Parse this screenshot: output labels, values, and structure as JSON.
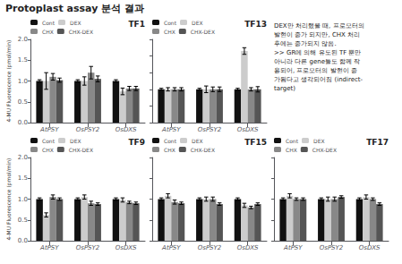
{
  "title": "Protoplast assay 분석 결과",
  "annotation": "DEX만 처리했을 때, 프로모터의\n발현이 증가 되지만, CHX 처리\n후에는 증가되지 않음.\n>> GR에 의해 유도된 TF 뿐만\n아니라 다른 gene들도 함께 작\n용되어, 프로모터의 발현이 증\n가됨다고 생각되어짐 (indirect-\ntarget)",
  "chart_data": [
    {
      "type": "bar",
      "title": "TF1",
      "ylabel": "4-MU Fluorescence (pmol/min)",
      "categories": [
        "AtPSY",
        "OsPSY2",
        "OsDXS"
      ],
      "series": [
        {
          "name": "Cont",
          "color": "#111111",
          "values": [
            1.0,
            1.0,
            1.0
          ],
          "errors": [
            0.03,
            0.03,
            0.03
          ]
        },
        {
          "name": "DEX",
          "color": "#cccccc",
          "values": [
            1.0,
            1.0,
            0.75
          ],
          "errors": [
            0.2,
            0.1,
            0.08
          ]
        },
        {
          "name": "CHX",
          "color": "#888888",
          "values": [
            1.1,
            1.2,
            0.82
          ],
          "errors": [
            0.08,
            0.15,
            0.05
          ]
        },
        {
          "name": "CHX-DEX",
          "color": "#555555",
          "values": [
            1.02,
            1.05,
            0.82
          ],
          "errors": [
            0.05,
            0.07,
            0.05
          ]
        }
      ],
      "ylim": [
        0,
        2
      ],
      "yticks": [
        {
          "value": 0,
          "label": "0.0"
        },
        0.5,
        {
          "value": 1.0,
          "label": "1.0"
        },
        1.5,
        {
          "value": 2.0,
          "label": "2.0"
        }
      ],
      "grid": false,
      "legend": "upper left"
    },
    {
      "type": "bar",
      "title": "TF13",
      "categories": [
        "AtPSY",
        "OsPSY2",
        "OsDXS"
      ],
      "series": [
        {
          "name": "Cont",
          "color": "#111111",
          "values": [
            1.0,
            1.0,
            1.0
          ],
          "errors": [
            0.03,
            0.03,
            0.03
          ]
        },
        {
          "name": "DEX",
          "color": "#cccccc",
          "values": [
            1.0,
            1.0,
            2.15
          ],
          "errors": [
            0.05,
            0.1,
            0.1
          ]
        },
        {
          "name": "CHX",
          "color": "#888888",
          "values": [
            1.0,
            1.0,
            1.0
          ],
          "errors": [
            0.05,
            0.07,
            0.05
          ]
        },
        {
          "name": "CHX-DEX",
          "color": "#555555",
          "values": [
            1.0,
            1.0,
            1.0
          ],
          "errors": [
            0.05,
            0.07,
            0.08
          ]
        }
      ],
      "ylim": [
        0,
        2.5
      ],
      "yticks": [
        0,
        0.5,
        1.0,
        1.5,
        2.0,
        2.5
      ],
      "grid": false,
      "legend": "upper left",
      "tick_labels": "x"
    },
    {
      "type": "bar",
      "title": "TF9",
      "ylabel": "4-MU Fluorescence (pmol/min)",
      "categories": [
        "AtPSY",
        "OsPSY2",
        "OsDXS"
      ],
      "series": [
        {
          "name": "Cont",
          "color": "#111111",
          "values": [
            1.0,
            1.0,
            1.0
          ],
          "errors": [
            0.03,
            0.03,
            0.03
          ]
        },
        {
          "name": "DEX",
          "color": "#cccccc",
          "values": [
            0.62,
            1.05,
            0.98
          ],
          "errors": [
            0.05,
            0.05,
            0.05
          ]
        },
        {
          "name": "CHX",
          "color": "#888888",
          "values": [
            1.05,
            0.9,
            0.92
          ],
          "errors": [
            0.05,
            0.05,
            0.03
          ]
        },
        {
          "name": "CHX-DEX",
          "color": "#555555",
          "values": [
            1.0,
            0.88,
            0.9
          ],
          "errors": [
            0.03,
            0.03,
            0.03
          ]
        }
      ],
      "ylim": [
        0,
        2
      ],
      "yticks": [
        {
          "value": 0,
          "label": "0.0"
        },
        0.5,
        {
          "value": 1.0,
          "label": "1.0"
        },
        1.5,
        {
          "value": 2.0,
          "label": "2.0"
        }
      ],
      "grid": false,
      "legend": "upper left"
    },
    {
      "type": "bar",
      "title": "TF15",
      "categories": [
        "AtPSY",
        "OsPSY2",
        "OsDXS"
      ],
      "series": [
        {
          "name": "Cont",
          "color": "#111111",
          "values": [
            1.0,
            1.0,
            1.0
          ],
          "errors": [
            0.03,
            0.03,
            0.03
          ]
        },
        {
          "name": "DEX",
          "color": "#cccccc",
          "values": [
            1.08,
            1.0,
            0.85
          ],
          "errors": [
            0.05,
            0.05,
            0.05
          ]
        },
        {
          "name": "CHX",
          "color": "#888888",
          "values": [
            0.93,
            1.0,
            0.8
          ],
          "errors": [
            0.05,
            0.05,
            0.03
          ]
        },
        {
          "name": "CHX-DEX",
          "color": "#555555",
          "values": [
            0.9,
            0.88,
            0.88
          ],
          "errors": [
            0.03,
            0.03,
            0.03
          ]
        }
      ],
      "ylim": [
        0,
        2
      ],
      "yticks": [
        0,
        0.5,
        1.0,
        1.5,
        2.0
      ],
      "grid": false,
      "legend": "upper left",
      "tick_labels": "x"
    },
    {
      "type": "bar",
      "title": "TF17",
      "categories": [
        "AtPSY",
        "OsPSY2",
        "OsDXS"
      ],
      "series": [
        {
          "name": "Cont",
          "color": "#111111",
          "values": [
            1.0,
            1.0,
            1.0
          ],
          "errors": [
            0.03,
            0.03,
            0.03
          ]
        },
        {
          "name": "DEX",
          "color": "#cccccc",
          "values": [
            1.08,
            1.0,
            1.05
          ],
          "errors": [
            0.05,
            0.05,
            0.05
          ]
        },
        {
          "name": "CHX",
          "color": "#888888",
          "values": [
            1.0,
            1.0,
            1.0
          ],
          "errors": [
            0.03,
            0.05,
            0.03
          ]
        },
        {
          "name": "CHX-DEX",
          "color": "#555555",
          "values": [
            1.0,
            1.05,
            0.88
          ],
          "errors": [
            0.03,
            0.03,
            0.03
          ]
        }
      ],
      "ylim": [
        0,
        2
      ],
      "yticks": [
        0,
        0.5,
        1.0,
        1.5,
        2.0
      ],
      "grid": false,
      "legend": "upper left",
      "tick_labels": "x"
    }
  ]
}
